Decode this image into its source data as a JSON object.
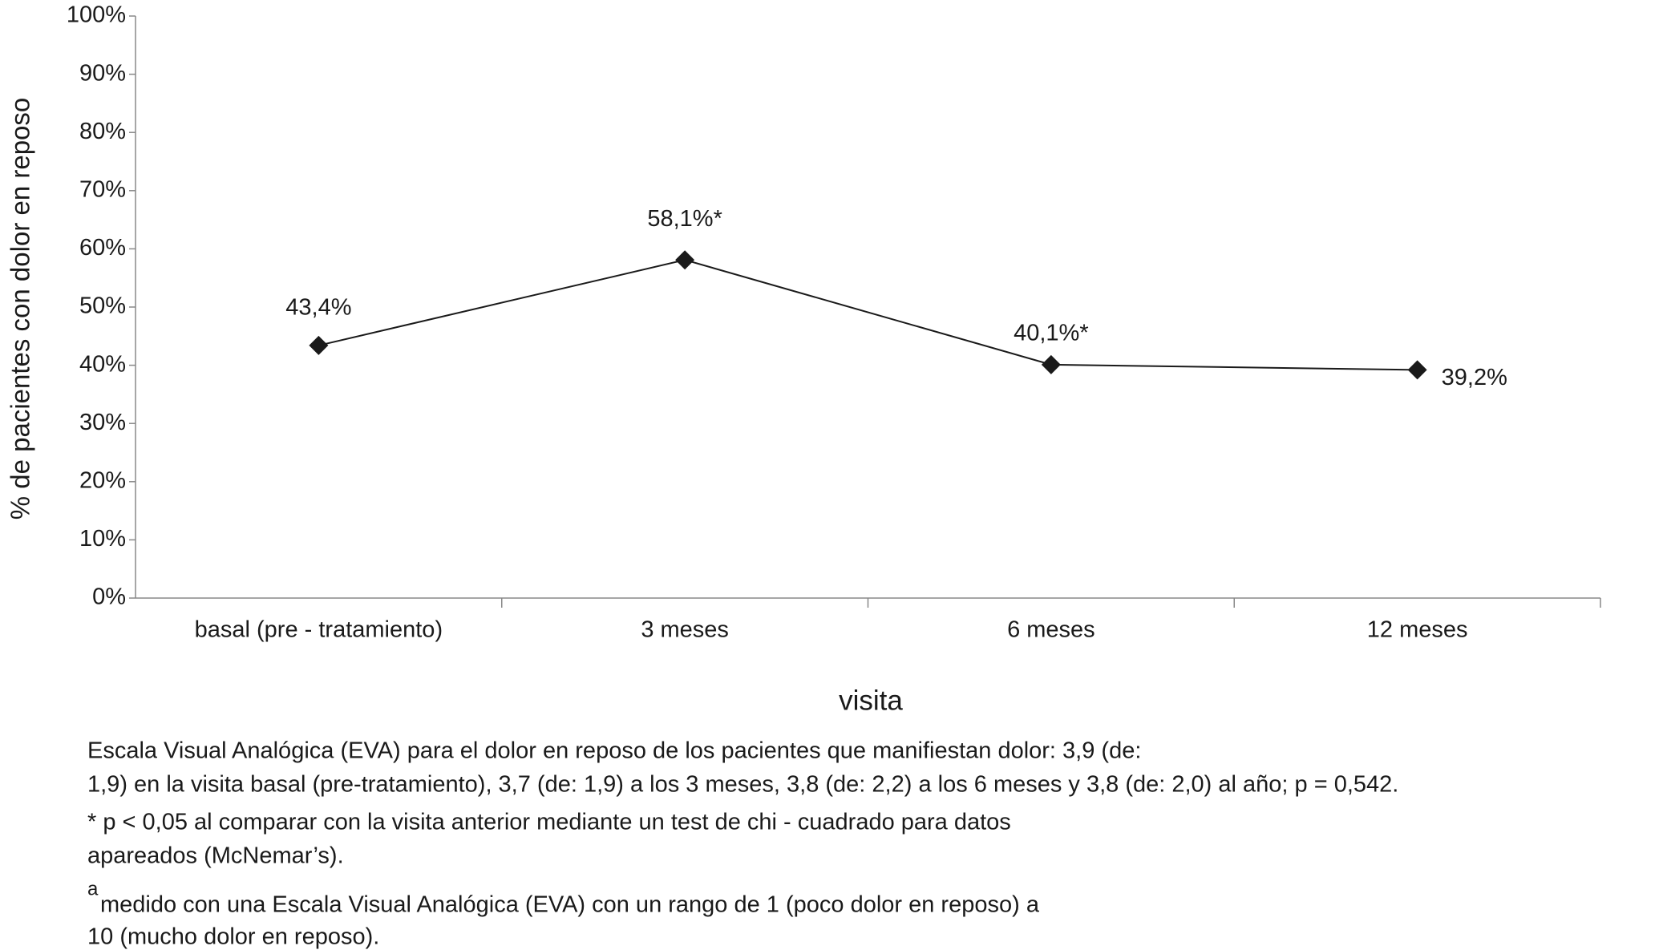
{
  "chart_data": {
    "type": "line",
    "y_label": "% de pacientes con dolor en reposo",
    "x_label": "visita",
    "categories": [
      "basal (pre - tratamiento)",
      "3 meses",
      "6 meses",
      "12 meses"
    ],
    "series": [
      {
        "color": "#1a1a1a",
        "values": [
          43.4,
          58.1,
          40.1,
          39.2
        ],
        "value_labels": [
          "43,4%",
          "58,1%*",
          "40,1%*",
          "39,2%"
        ]
      }
    ],
    "ylim": [
      0,
      100
    ],
    "yticks": [
      {
        "value": 0,
        "label": "0%"
      },
      {
        "value": 10,
        "label": "10%"
      },
      {
        "value": 20,
        "label": "20%"
      },
      {
        "value": 30,
        "label": "30%"
      },
      {
        "value": 40,
        "label": "40%"
      },
      {
        "value": 50,
        "label": "50%"
      },
      {
        "value": 60,
        "label": "60%"
      },
      {
        "value": 70,
        "label": "70%"
      },
      {
        "value": 80,
        "label": "80%"
      },
      {
        "value": 90,
        "label": "90%"
      },
      {
        "value": 100,
        "label": "100%"
      }
    ],
    "grid": false
  },
  "notes": [
    "Escala Visual Analógica (EVA) para el dolor en reposo de los pacientes que manifiestan dolor: 3,9 (de:",
    "1,9) en la visita basal (pre-tratamiento), 3,7 (de: 1,9) a los 3 meses, 3,8 (de: 2,2) a los 6 meses y 3,8 (de: 2,0) al año; p = 0,542.",
    "* p < 0,05 al comparar con la visita anterior mediante un test de chi - cuadrado para datos",
    "apareados (McNemar’s).",
    "medido con una Escala Visual Analógica (EVA) con un rango de 1 (poco dolor en reposo) a",
    "10 (mucho dolor en reposo)."
  ],
  "footnote_marker": "a"
}
